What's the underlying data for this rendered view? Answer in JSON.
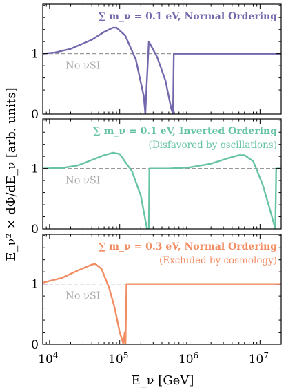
{
  "chart_data": [
    {
      "type": "line",
      "title": "∑ m_ν = 0.1 eV, Normal Ordering",
      "subtitle": "",
      "color": "#7468ad",
      "reference_label": "No νSI",
      "reference_value": 1,
      "xlabel": "E_ν [GeV]",
      "ylabel": "E_ν² × dΦ/dE_ν [arb. units]",
      "xscale": "log",
      "xlim": [
        8000,
        20000000
      ],
      "ylim": [
        0,
        1.82
      ],
      "yticks": [
        "0",
        "1"
      ],
      "series": [
        {
          "x": [
            8000,
            12000,
            20000,
            40000,
            60000,
            80000,
            90000,
            120000,
            170000,
            220000,
            232000,
            237000,
            260000,
            340000,
            450000,
            540000,
            575000,
            590000,
            1000000,
            20000000
          ],
          "y": [
            1.0,
            1.02,
            1.08,
            1.23,
            1.36,
            1.43,
            1.43,
            1.3,
            0.9,
            0.3,
            0.0,
            0.25,
            1.2,
            0.95,
            0.55,
            0.1,
            0.0,
            1.0,
            1.0,
            1.0
          ]
        }
      ]
    },
    {
      "type": "line",
      "title": "∑ m_ν = 0.1 eV, Inverted Ordering",
      "subtitle": "(Disfavored by oscillations)",
      "color": "#66c3a5",
      "reference_label": "No νSI",
      "reference_value": 1,
      "xscale": "log",
      "xlim": [
        8000,
        20000000
      ],
      "ylim": [
        0,
        1.82
      ],
      "yticks": [
        "0",
        "1"
      ],
      "series": [
        {
          "x": [
            8000,
            15000,
            25000,
            40000,
            60000,
            80000,
            100000,
            150000,
            200000,
            245000,
            260000,
            265000,
            500000,
            1000000,
            2000000,
            3500000,
            5000000,
            6000000,
            8000000,
            11000000,
            14000000,
            16500000,
            17000000,
            20000000
          ],
          "y": [
            1.0,
            1.01,
            1.05,
            1.14,
            1.22,
            1.26,
            1.24,
            0.95,
            0.55,
            0.0,
            0.0,
            1.0,
            1.0,
            1.02,
            1.08,
            1.17,
            1.22,
            1.22,
            1.12,
            0.72,
            0.3,
            0.0,
            1.0,
            1.0
          ]
        }
      ]
    },
    {
      "type": "line",
      "title": "∑ m_ν = 0.3 eV, Normal Ordering",
      "subtitle": "(Excluded by cosmology)",
      "color": "#f28c62",
      "reference_label": "No νSI",
      "reference_value": 1,
      "xscale": "log",
      "xlim": [
        8000,
        20000000
      ],
      "ylim": [
        0,
        1.82
      ],
      "xticks": [
        "10^4",
        "10^5",
        "10^6",
        "10^7"
      ],
      "yticks": [
        "0",
        "1"
      ],
      "series": [
        {
          "x": [
            8000,
            15000,
            25000,
            40000,
            45000,
            55000,
            70000,
            85000,
            100000,
            110000,
            113000,
            118000,
            121000,
            125000,
            130000,
            1000000,
            20000000
          ],
          "y": [
            1.02,
            1.1,
            1.22,
            1.32,
            1.33,
            1.25,
            0.95,
            0.6,
            0.2,
            0.05,
            0.0,
            0.2,
            0.0,
            1.0,
            1.0,
            1.0,
            1.0
          ]
        }
      ]
    }
  ]
}
